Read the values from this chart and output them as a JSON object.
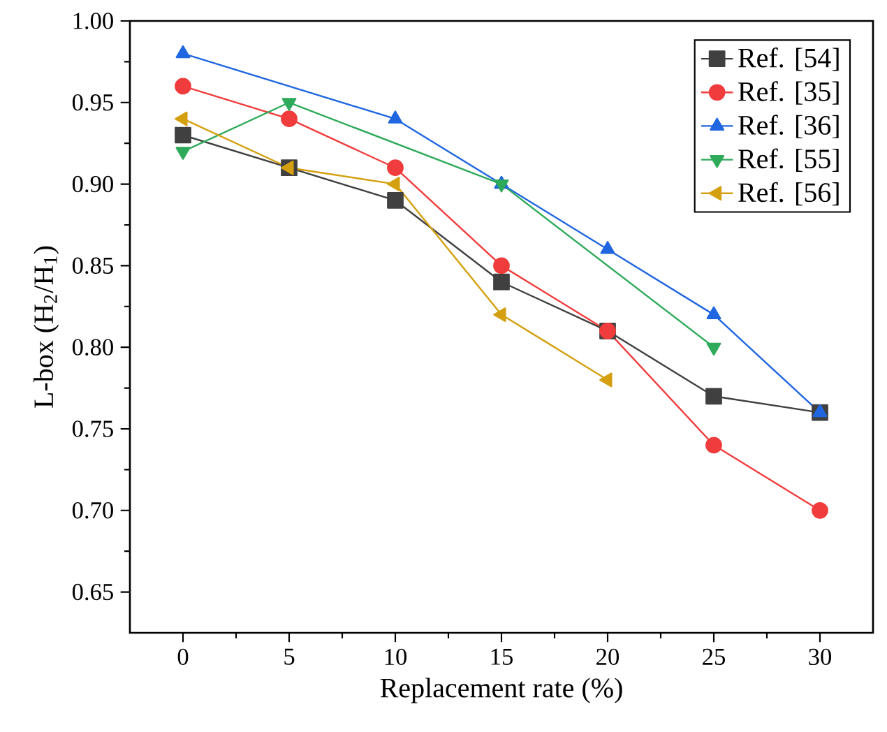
{
  "chart_data": {
    "type": "line",
    "xlabel": "Replacement rate (%)",
    "ylabel": "L-box (H$_{2}$/H$_{1}$)",
    "xlim": [
      -2.5,
      32.5
    ],
    "xticks": [
      0,
      5,
      10,
      15,
      20,
      25,
      30
    ],
    "ylim": [
      0.625,
      1.0
    ],
    "yticks": [
      {
        "value": 0.65,
        "label": "0.65"
      },
      {
        "value": 0.7,
        "label": "0.70"
      },
      {
        "value": 0.75,
        "label": "0.75"
      },
      {
        "value": 0.8,
        "label": "0.80"
      },
      {
        "value": 0.85,
        "label": "0.85"
      },
      {
        "value": 0.9,
        "label": "0.90"
      },
      {
        "value": 0.95,
        "label": "0.95"
      },
      {
        "value": 1.0,
        "label": "1.00"
      }
    ],
    "legend": "top right",
    "grid": false,
    "line_style": "solid",
    "series": [
      {
        "name": "Ref. [54]",
        "color": "#404040",
        "marker": "square",
        "x": [
          0,
          5,
          10,
          15,
          20,
          25,
          30
        ],
        "values": [
          0.93,
          0.91,
          0.89,
          0.84,
          0.81,
          0.77,
          0.76
        ]
      },
      {
        "name": "Ref. [35]",
        "color": "#f03c3c",
        "marker": "circle",
        "x": [
          0,
          5,
          10,
          15,
          20,
          25,
          30
        ],
        "values": [
          0.96,
          0.94,
          0.91,
          0.85,
          0.81,
          0.74,
          0.7
        ]
      },
      {
        "name": "Ref. [36]",
        "color": "#1f66e0",
        "marker": "triangle",
        "x": [
          0,
          10,
          15,
          20,
          25,
          30
        ],
        "values": [
          0.98,
          0.94,
          0.9,
          0.86,
          0.82,
          0.76
        ]
      },
      {
        "name": "Ref. [55]",
        "color": "#2eaa5a",
        "marker": "triangle-down",
        "x": [
          0,
          5,
          15,
          25
        ],
        "values": [
          0.92,
          0.95,
          0.9,
          0.8
        ]
      },
      {
        "name": "Ref. [56]",
        "color": "#d4a010",
        "marker": "triangle-left",
        "x": [
          0,
          5,
          10,
          15,
          20
        ],
        "values": [
          0.94,
          0.91,
          0.9,
          0.82,
          0.78
        ]
      }
    ]
  }
}
